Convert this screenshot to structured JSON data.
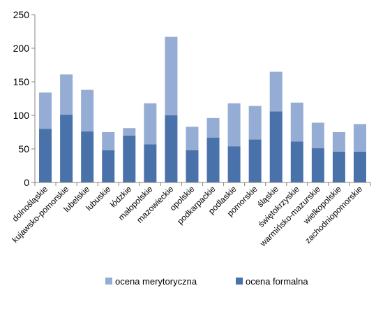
{
  "chart_data": {
    "type": "bar",
    "stacked": true,
    "title": "",
    "xlabel": "",
    "ylabel": "",
    "ylim": [
      0,
      250
    ],
    "yticks": [
      0,
      50,
      100,
      150,
      200,
      250
    ],
    "grid": false,
    "legend_position": "bottom",
    "categories": [
      "dolnośląskie",
      "kujawsko-pomorskie",
      "lubelskie",
      "lubuskie",
      "łódzkie",
      "małopolskie",
      "mazowieckie",
      "opolskie",
      "podkarpackie",
      "podlaskie",
      "pomorskie",
      "śląskie",
      "świętokrzyskie",
      "warmińsko-mazurskie",
      "wielkopolskie",
      "zachodniopomorskie"
    ],
    "series": [
      {
        "name": "ocena formalna",
        "color": "#4a72aa",
        "values": [
          80,
          101,
          76,
          48,
          70,
          57,
          100,
          48,
          67,
          54,
          64,
          106,
          61,
          51,
          46,
          46
        ]
      },
      {
        "name": "ocena merytoryczna",
        "color": "#95acd5",
        "values": [
          54,
          60,
          62,
          27,
          11,
          61,
          117,
          35,
          29,
          64,
          50,
          59,
          58,
          38,
          29,
          41
        ]
      }
    ],
    "legend_order": [
      "ocena merytoryczna",
      "ocena formalna"
    ]
  }
}
